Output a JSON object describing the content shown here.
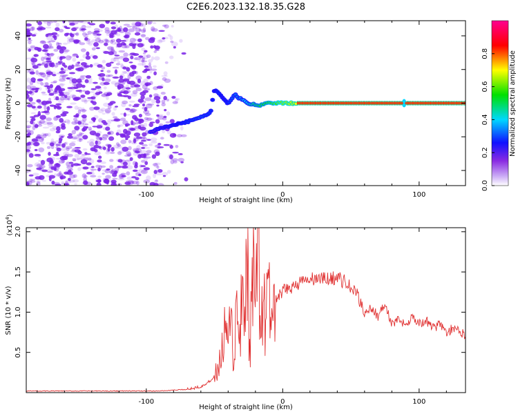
{
  "title": "C2E6.2023.132.18.35.G28",
  "colorbar": {
    "label": "Normalized spectral amplitude",
    "ticks": [
      "0.0",
      "0.2",
      "0.4",
      "0.6",
      "0.8"
    ],
    "tick_values": [
      0.0,
      0.2,
      0.4,
      0.6,
      0.8
    ],
    "range": [
      0,
      1
    ],
    "colormap": [
      "#ffffff",
      "#8a2be2",
      "#1010ff",
      "#00d8ff",
      "#00e000",
      "#ffff00",
      "#ff0000",
      "#ff0090"
    ]
  },
  "chart_data": [
    {
      "type": "heatmap",
      "name": "spectrogram",
      "xlabel": "Height of straight line (km)",
      "ylabel": "Frequency (Hz)",
      "xlim": [
        -188,
        134
      ],
      "ylim": [
        -49,
        49
      ],
      "xticks": [
        -100,
        0,
        100
      ],
      "yticks": [
        -40,
        -20,
        0,
        20,
        40
      ],
      "grid": false,
      "noise_region_x": [
        -188,
        -70
      ],
      "signal_track": {
        "x": [
          -97,
          -90,
          -80,
          -70,
          -60,
          -53,
          -50,
          -47,
          -44,
          -40,
          -35,
          -30,
          -25,
          -20,
          -15,
          -10,
          -5,
          0,
          10,
          50,
          89,
          100,
          134
        ],
        "frequency": [
          -17,
          -15,
          -13,
          -11,
          -8,
          -6,
          8,
          6,
          3,
          0,
          5,
          2,
          0,
          -1,
          -1,
          0,
          0,
          0,
          0,
          0,
          0,
          0,
          0
        ],
        "amplitude": [
          0.25,
          0.3,
          0.35,
          0.4,
          0.45,
          0.4,
          0.35,
          0.4,
          0.35,
          0.4,
          0.45,
          0.5,
          0.6,
          0.7,
          0.75,
          0.8,
          0.85,
          0.9,
          1.0,
          1.0,
          1.0,
          1.0,
          1.0
        ]
      }
    },
    {
      "type": "line",
      "name": "snr",
      "xlabel": "Height of straight line (km)",
      "ylabel": "SNR (10 * v/v)",
      "scale_label": "(x10",
      "scale_exp": "4",
      "scale_close": ")",
      "xlim": [
        -188,
        134
      ],
      "ylim": [
        0,
        2.05
      ],
      "xticks": [
        -100,
        0,
        100
      ],
      "yticks": [
        0.5,
        1.0,
        1.5,
        2.0
      ],
      "ytick_labels": [
        "0.5",
        "1.0",
        "1.5",
        "2.0"
      ],
      "grid": false,
      "color": "#e03030",
      "series": [
        {
          "x": [
            -188,
            -170,
            -150,
            -130,
            -110,
            -90,
            -80,
            -70,
            -65,
            -60,
            -55,
            -50,
            -45,
            -42,
            -40,
            -38,
            -36,
            -34,
            -32,
            -30,
            -28,
            -26,
            -24,
            -22,
            -20,
            -18,
            -16,
            -14,
            -12,
            -10,
            -8,
            -6,
            -4,
            -2,
            0,
            5,
            10,
            15,
            20,
            25,
            30,
            35,
            40,
            45,
            50,
            55,
            60,
            65,
            70,
            75,
            80,
            85,
            90,
            95,
            100,
            105,
            110,
            115,
            120,
            125,
            130,
            134
          ],
          "y": [
            0.02,
            0.02,
            0.02,
            0.02,
            0.02,
            0.02,
            0.03,
            0.04,
            0.06,
            0.08,
            0.12,
            0.2,
            0.4,
            0.8,
            0.5,
            0.9,
            0.3,
            1.0,
            0.5,
            1.2,
            0.6,
            1.7,
            0.4,
            1.6,
            0.7,
            2.05,
            0.8,
            1.1,
            0.9,
            1.2,
            1.0,
            1.1,
            1.15,
            1.2,
            1.25,
            1.3,
            1.35,
            1.38,
            1.4,
            1.42,
            1.41,
            1.42,
            1.43,
            1.38,
            1.3,
            1.2,
            1.0,
            1.05,
            0.95,
            1.1,
            0.85,
            0.9,
            0.85,
            0.95,
            0.85,
            0.9,
            0.8,
            0.85,
            0.75,
            0.8,
            0.75,
            0.72
          ]
        }
      ]
    }
  ]
}
